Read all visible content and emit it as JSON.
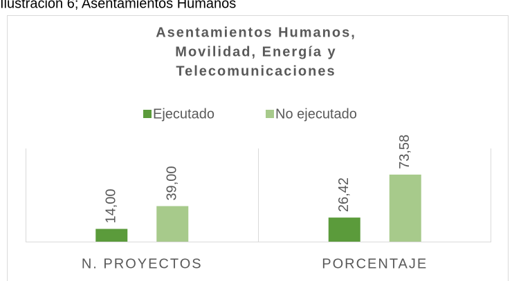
{
  "caption": "Ilustración 6; Asentamientos Humanos",
  "chart_data": {
    "type": "bar",
    "title": [
      "Asentamientos Humanos,",
      "Movilidad, Energía y",
      "Telecomunicaciones"
    ],
    "categories": [
      "N. PROYECTOS",
      "PORCENTAJE"
    ],
    "series": [
      {
        "name": "Ejecutado",
        "color": "#5b9b3b",
        "values": [
          14,
          26.42
        ],
        "value_labels": [
          "14,00",
          "26,42"
        ]
      },
      {
        "name": "No ejecutado",
        "color": "#a7ca8b",
        "values": [
          39,
          73.58
        ],
        "value_labels": [
          "39,00",
          "73,58"
        ]
      }
    ],
    "legend": "top"
  }
}
